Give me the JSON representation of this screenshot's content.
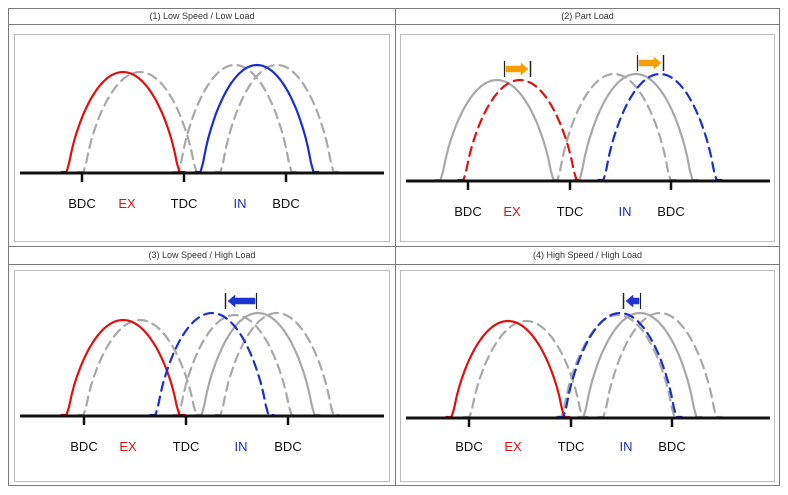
{
  "colors": {
    "exhaust": "#e01010",
    "intake": "#1a2fd0",
    "reference": "#a8a8a8",
    "axis": "#111111",
    "shift_arrow": "#f5a000",
    "advance_arrow": "#1d34d1"
  },
  "panels": [
    {
      "title": "(1) Low Speed / Low Load",
      "labels": [
        "BDC",
        "EX",
        "TDC",
        "IN",
        "BDC"
      ]
    },
    {
      "title": "(2) Part Load",
      "labels": [
        "BDC",
        "EX",
        "TDC",
        "IN",
        "BDC"
      ]
    },
    {
      "title": "(3) Low Speed / High Load",
      "labels": [
        "BDC",
        "EX",
        "TDC",
        "IN",
        "BDC"
      ]
    },
    {
      "title": "(4) High Speed / High Load",
      "labels": [
        "BDC",
        "EX",
        "TDC",
        "IN",
        "BDC"
      ]
    }
  ]
}
